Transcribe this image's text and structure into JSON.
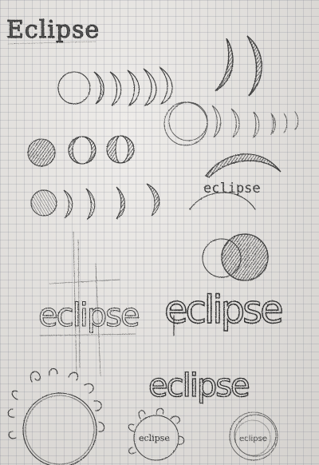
{
  "sketch": {
    "heading": "Eclipse",
    "wordmarks": {
      "arc_label": "eclipse",
      "outlined_left": "eclipse",
      "outlined_right": "eclipse",
      "bold_center": "eclipse",
      "sun_label": "eclipse",
      "ring_label": "eclipse"
    }
  },
  "colors": {
    "paper": "#e6e3df",
    "grid": "#8a8f9c",
    "pencil": "#3a3a3a",
    "shade": "#2b2b2b"
  }
}
